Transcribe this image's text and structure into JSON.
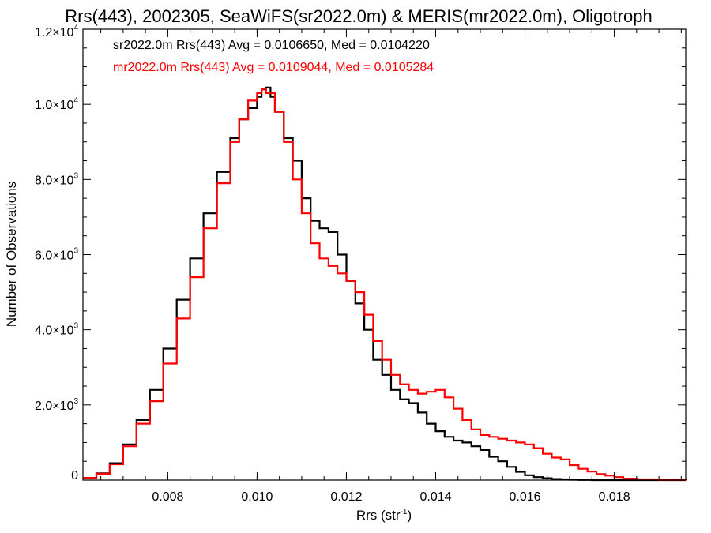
{
  "chart_data": {
    "type": "line",
    "title": "Rrs(443), 2002305, SeaWiFS(sr2022.0m) & MERIS(mr2022.0m), Oligotroph",
    "xlabel": "Rrs (str",
    "xlabel_sup": "-1",
    "xlabel_end": ")",
    "ylabel": "Number of Observations",
    "xlim": [
      0.0061,
      0.0196
    ],
    "ylim": [
      0,
      12000
    ],
    "grid": false,
    "legend_placement": "top-left",
    "x_ticks": [
      {
        "value": 0.008,
        "label": "0.008"
      },
      {
        "value": 0.01,
        "label": "0.010"
      },
      {
        "value": 0.012,
        "label": "0.012"
      },
      {
        "value": 0.014,
        "label": "0.014"
      },
      {
        "value": 0.016,
        "label": "0.016"
      },
      {
        "value": 0.018,
        "label": "0.018"
      }
    ],
    "y_ticks": [
      {
        "value": 0,
        "mant": "0",
        "exp": ""
      },
      {
        "value": 2000,
        "mant": "2.0×10",
        "exp": "3"
      },
      {
        "value": 4000,
        "mant": "4.0×10",
        "exp": "3"
      },
      {
        "value": 6000,
        "mant": "6.0×10",
        "exp": "3"
      },
      {
        "value": 8000,
        "mant": "8.0×10",
        "exp": "3"
      },
      {
        "value": 10000,
        "mant": "1.0×10",
        "exp": "4"
      },
      {
        "value": 12000,
        "mant": "1.2×10",
        "exp": "4"
      }
    ],
    "series": [
      {
        "legend_text": "sr2022.0m Rrs(443) Avg = 0.0106650, Med = 0.0104220",
        "color": "#000000",
        "x": [
          0.0061,
          0.0064,
          0.0067,
          0.007,
          0.0073,
          0.0076,
          0.0079,
          0.0082,
          0.0085,
          0.0088,
          0.0091,
          0.0094,
          0.0096,
          0.0098,
          0.01,
          0.0101,
          0.0102,
          0.0103,
          0.0104,
          0.0106,
          0.0108,
          0.011,
          0.0112,
          0.0114,
          0.0116,
          0.0118,
          0.012,
          0.0122,
          0.0124,
          0.0126,
          0.0128,
          0.013,
          0.0132,
          0.0134,
          0.0136,
          0.0138,
          0.014,
          0.0142,
          0.0144,
          0.0146,
          0.0148,
          0.015,
          0.0152,
          0.0154,
          0.0156,
          0.0158,
          0.016,
          0.0162,
          0.0164,
          0.0166,
          0.0168,
          0.017,
          0.0172,
          0.0175,
          0.018,
          0.0185,
          0.019,
          0.0196
        ],
        "y": [
          60,
          180,
          450,
          950,
          1600,
          2400,
          3500,
          4800,
          5900,
          7100,
          8200,
          9100,
          9600,
          9900,
          10200,
          10400,
          10450,
          10200,
          9800,
          9100,
          8500,
          7500,
          6900,
          6700,
          6600,
          6000,
          5300,
          4700,
          4000,
          3200,
          2800,
          2400,
          2150,
          2050,
          1800,
          1500,
          1300,
          1150,
          1050,
          1000,
          900,
          800,
          620,
          500,
          350,
          220,
          130,
          80,
          50,
          30,
          20,
          10,
          5,
          0,
          0,
          0,
          0,
          0
        ]
      },
      {
        "legend_text": "mr2022.0m Rrs(443) Avg = 0.0109044, Med = 0.0105284",
        "color": "#ff0000",
        "x": [
          0.0061,
          0.0064,
          0.0067,
          0.007,
          0.0073,
          0.0076,
          0.0079,
          0.0082,
          0.0085,
          0.0088,
          0.0091,
          0.0094,
          0.0096,
          0.0098,
          0.01,
          0.0101,
          0.0102,
          0.0104,
          0.0106,
          0.0108,
          0.011,
          0.0112,
          0.0114,
          0.0116,
          0.0118,
          0.012,
          0.0122,
          0.0124,
          0.0126,
          0.0128,
          0.013,
          0.0132,
          0.0134,
          0.0136,
          0.0138,
          0.014,
          0.0142,
          0.0144,
          0.0146,
          0.0148,
          0.015,
          0.0152,
          0.0154,
          0.0156,
          0.0158,
          0.016,
          0.0162,
          0.0164,
          0.0166,
          0.0168,
          0.017,
          0.0172,
          0.0174,
          0.0176,
          0.0178,
          0.018,
          0.0182,
          0.0185,
          0.019,
          0.0196
        ],
        "y": [
          60,
          170,
          420,
          900,
          1500,
          2100,
          3100,
          4300,
          5400,
          6700,
          7900,
          9000,
          9600,
          10100,
          10300,
          10400,
          10300,
          9800,
          9000,
          8000,
          7100,
          6300,
          5900,
          5700,
          5500,
          5300,
          5000,
          4400,
          3700,
          3200,
          2800,
          2550,
          2400,
          2300,
          2350,
          2400,
          2200,
          1900,
          1600,
          1350,
          1200,
          1150,
          1100,
          1050,
          1000,
          950,
          850,
          700,
          600,
          550,
          400,
          300,
          230,
          160,
          120,
          80,
          40,
          20,
          5,
          0
        ]
      }
    ]
  }
}
